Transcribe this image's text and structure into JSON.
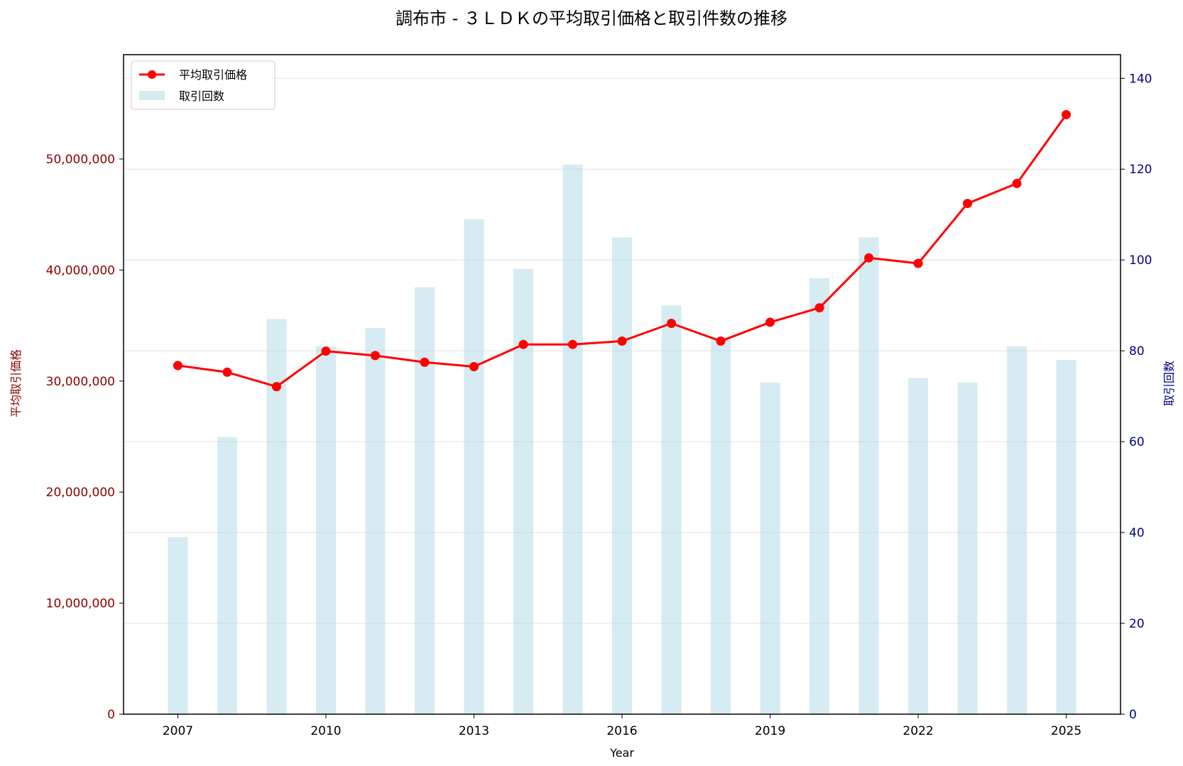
{
  "chart_data": {
    "type": "bar+line",
    "title": "調布市 - ３ＬＤＫの平均取引価格と取引件数の推移",
    "xlabel": "Year",
    "ylabel_left": "平均取引価格",
    "ylabel_right": "取引回数",
    "x": [
      2007,
      2008,
      2009,
      2010,
      2011,
      2012,
      2013,
      2014,
      2015,
      2016,
      2017,
      2018,
      2019,
      2020,
      2021,
      2022,
      2023,
      2024,
      2025
    ],
    "x_ticks": [
      "2007",
      "2010",
      "2013",
      "2016",
      "2019",
      "2022",
      "2025"
    ],
    "xlim": [
      2005.9,
      2026.1
    ],
    "series": [
      {
        "name": "平均取引価格",
        "kind": "line",
        "axis": "left",
        "color": "#ff0000",
        "values": [
          31400000,
          30800000,
          29500000,
          32700000,
          32300000,
          31700000,
          31300000,
          33300000,
          33300000,
          33600000,
          35200000,
          33600000,
          35300000,
          36600000,
          41100000,
          40600000,
          46000000,
          47800000,
          54000000
        ]
      },
      {
        "name": "取引回数",
        "kind": "bar",
        "axis": "right",
        "color": "#add8e6",
        "values": [
          39,
          61,
          87,
          81,
          85,
          94,
          109,
          98,
          121,
          105,
          90,
          83,
          73,
          96,
          105,
          74,
          73,
          81,
          78
        ]
      }
    ],
    "y_left_ticks": [
      "0",
      "10,000,000",
      "20,000,000",
      "30,000,000",
      "40,000,000",
      "50,000,000"
    ],
    "y_left_tick_values": [
      0,
      10000000,
      20000000,
      30000000,
      40000000,
      50000000
    ],
    "ylim_left": [
      0,
      59400000
    ],
    "y_right_ticks": [
      "0",
      "20",
      "40",
      "60",
      "80",
      "100",
      "120",
      "140"
    ],
    "y_right_tick_values": [
      0,
      20,
      40,
      60,
      80,
      100,
      120,
      140
    ],
    "ylim_right": [
      0,
      145.2
    ],
    "grid": true,
    "legend": "top-left"
  }
}
